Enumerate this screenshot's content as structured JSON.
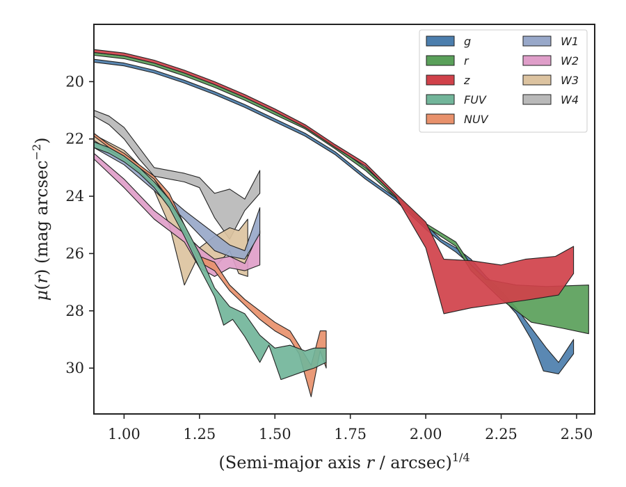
{
  "chart_data": {
    "type": "area",
    "xlabel": "(Semi-major axis r / arcsec)",
    "xlabel_parts": {
      "pre": "(Semi-major axis ",
      "var": "r",
      "post": " / arcsec)",
      "sup": "1/4"
    },
    "ylabel": "μ(r) (mag arcsec⁻²)",
    "ylabel_parts": {
      "mu": "μ",
      "var": "r",
      "rest": " (mag arcsec",
      "sup": "−2",
      "close": ")"
    },
    "xlim": [
      0.9,
      2.56
    ],
    "ylim": [
      31.6,
      18.0
    ],
    "y_inverted": true,
    "xticks": [
      1.0,
      1.25,
      1.5,
      1.75,
      2.0,
      2.25,
      2.5
    ],
    "xtick_labels": [
      "1.00",
      "1.25",
      "1.50",
      "1.75",
      "2.00",
      "2.25",
      "2.50"
    ],
    "yticks": [
      20,
      22,
      24,
      26,
      28,
      30
    ],
    "ytick_labels": [
      "20",
      "22",
      "24",
      "26",
      "28",
      "30"
    ],
    "grid": false,
    "legend_position": "top-right",
    "legend_columns": 2,
    "series": [
      {
        "name": "g",
        "color": "#4c7ead",
        "upper": [
          [
            0.9,
            19.22
          ],
          [
            1.0,
            19.35
          ],
          [
            1.1,
            19.6
          ],
          [
            1.2,
            19.95
          ],
          [
            1.3,
            20.35
          ],
          [
            1.4,
            20.8
          ],
          [
            1.5,
            21.3
          ],
          [
            1.6,
            21.8
          ],
          [
            1.7,
            22.45
          ],
          [
            1.8,
            23.3
          ],
          [
            1.9,
            24.05
          ],
          [
            2.0,
            25.0
          ],
          [
            2.05,
            25.5
          ],
          [
            2.1,
            25.8
          ],
          [
            2.15,
            26.2
          ],
          [
            2.2,
            26.8
          ],
          [
            2.25,
            27.3
          ],
          [
            2.3,
            27.9
          ],
          [
            2.35,
            28.6
          ],
          [
            2.4,
            29.3
          ],
          [
            2.44,
            29.8
          ],
          [
            2.49,
            29.0
          ]
        ],
        "lower": [
          [
            0.9,
            19.32
          ],
          [
            1.0,
            19.45
          ],
          [
            1.1,
            19.7
          ],
          [
            1.2,
            20.05
          ],
          [
            1.3,
            20.45
          ],
          [
            1.4,
            20.9
          ],
          [
            1.5,
            21.4
          ],
          [
            1.6,
            21.9
          ],
          [
            1.7,
            22.55
          ],
          [
            1.8,
            23.4
          ],
          [
            1.9,
            24.15
          ],
          [
            2.0,
            25.15
          ],
          [
            2.05,
            25.6
          ],
          [
            2.1,
            25.95
          ],
          [
            2.15,
            26.4
          ],
          [
            2.2,
            27.0
          ],
          [
            2.25,
            27.5
          ],
          [
            2.3,
            28.1
          ],
          [
            2.35,
            29.0
          ],
          [
            2.39,
            30.1
          ],
          [
            2.44,
            30.2
          ],
          [
            2.49,
            29.5
          ]
        ]
      },
      {
        "name": "r",
        "color": "#5aa05a",
        "upper": [
          [
            0.9,
            18.98
          ],
          [
            1.0,
            19.1
          ],
          [
            1.1,
            19.35
          ],
          [
            1.2,
            19.7
          ],
          [
            1.3,
            20.1
          ],
          [
            1.4,
            20.55
          ],
          [
            1.5,
            21.05
          ],
          [
            1.6,
            21.55
          ],
          [
            1.7,
            22.25
          ],
          [
            1.8,
            23.0
          ],
          [
            1.9,
            23.95
          ],
          [
            2.0,
            24.95
          ],
          [
            2.1,
            25.6
          ],
          [
            2.15,
            26.4
          ],
          [
            2.2,
            26.9
          ],
          [
            2.3,
            27.1
          ],
          [
            2.4,
            27.15
          ],
          [
            2.54,
            27.1
          ]
        ],
        "lower": [
          [
            0.9,
            19.08
          ],
          [
            1.0,
            19.2
          ],
          [
            1.1,
            19.45
          ],
          [
            1.2,
            19.8
          ],
          [
            1.3,
            20.2
          ],
          [
            1.4,
            20.65
          ],
          [
            1.5,
            21.15
          ],
          [
            1.6,
            21.65
          ],
          [
            1.7,
            22.35
          ],
          [
            1.8,
            23.1
          ],
          [
            1.9,
            24.05
          ],
          [
            2.0,
            25.05
          ],
          [
            2.1,
            25.75
          ],
          [
            2.15,
            26.6
          ],
          [
            2.2,
            27.1
          ],
          [
            2.25,
            27.6
          ],
          [
            2.3,
            28.0
          ],
          [
            2.35,
            28.4
          ],
          [
            2.45,
            28.6
          ],
          [
            2.54,
            28.8
          ]
        ]
      },
      {
        "name": "z",
        "color": "#d0414a",
        "upper": [
          [
            0.9,
            18.88
          ],
          [
            1.0,
            19.0
          ],
          [
            1.1,
            19.25
          ],
          [
            1.2,
            19.6
          ],
          [
            1.3,
            20.0
          ],
          [
            1.4,
            20.45
          ],
          [
            1.5,
            20.95
          ],
          [
            1.6,
            21.5
          ],
          [
            1.7,
            22.2
          ],
          [
            1.8,
            22.85
          ],
          [
            1.9,
            23.9
          ],
          [
            2.0,
            24.9
          ],
          [
            2.06,
            26.2
          ],
          [
            2.15,
            26.25
          ],
          [
            2.25,
            26.4
          ],
          [
            2.33,
            26.2
          ],
          [
            2.43,
            26.1
          ],
          [
            2.49,
            25.75
          ]
        ],
        "lower": [
          [
            0.9,
            18.98
          ],
          [
            1.0,
            19.1
          ],
          [
            1.1,
            19.35
          ],
          [
            1.2,
            19.7
          ],
          [
            1.3,
            20.1
          ],
          [
            1.4,
            20.55
          ],
          [
            1.5,
            21.05
          ],
          [
            1.6,
            21.6
          ],
          [
            1.7,
            22.3
          ],
          [
            1.8,
            22.95
          ],
          [
            1.9,
            24.0
          ],
          [
            2.0,
            25.8
          ],
          [
            2.06,
            28.1
          ],
          [
            2.15,
            27.9
          ],
          [
            2.25,
            27.75
          ],
          [
            2.35,
            27.6
          ],
          [
            2.44,
            27.45
          ],
          [
            2.49,
            26.7
          ]
        ]
      },
      {
        "name": "FUV",
        "color": "#72b59a",
        "upper": [
          [
            0.9,
            22.1
          ],
          [
            0.95,
            22.3
          ],
          [
            1.0,
            22.6
          ],
          [
            1.05,
            23.0
          ],
          [
            1.1,
            23.5
          ],
          [
            1.15,
            24.1
          ],
          [
            1.2,
            25.0
          ],
          [
            1.25,
            26.0
          ],
          [
            1.3,
            27.2
          ],
          [
            1.35,
            27.85
          ],
          [
            1.4,
            28.1
          ],
          [
            1.45,
            28.85
          ],
          [
            1.5,
            29.3
          ],
          [
            1.55,
            29.2
          ],
          [
            1.6,
            29.4
          ],
          [
            1.63,
            29.3
          ],
          [
            1.67,
            29.3
          ]
        ],
        "lower": [
          [
            0.9,
            22.3
          ],
          [
            0.95,
            22.5
          ],
          [
            1.0,
            22.8
          ],
          [
            1.05,
            23.2
          ],
          [
            1.1,
            23.7
          ],
          [
            1.15,
            24.4
          ],
          [
            1.2,
            25.4
          ],
          [
            1.25,
            26.5
          ],
          [
            1.3,
            27.5
          ],
          [
            1.33,
            28.5
          ],
          [
            1.36,
            28.3
          ],
          [
            1.4,
            28.9
          ],
          [
            1.45,
            29.8
          ],
          [
            1.48,
            29.2
          ],
          [
            1.52,
            30.4
          ],
          [
            1.6,
            30.1
          ],
          [
            1.63,
            30.0
          ],
          [
            1.67,
            29.8
          ]
        ]
      },
      {
        "name": "NUV",
        "color": "#e8916c",
        "upper": [
          [
            0.9,
            21.8
          ],
          [
            0.95,
            22.2
          ],
          [
            1.0,
            22.5
          ],
          [
            1.05,
            22.9
          ],
          [
            1.1,
            23.3
          ],
          [
            1.15,
            23.9
          ],
          [
            1.2,
            25.0
          ],
          [
            1.25,
            26.1
          ],
          [
            1.3,
            26.3
          ],
          [
            1.35,
            27.1
          ],
          [
            1.4,
            27.6
          ],
          [
            1.45,
            28.0
          ],
          [
            1.5,
            28.4
          ],
          [
            1.55,
            28.7
          ],
          [
            1.58,
            29.2
          ],
          [
            1.62,
            29.9
          ],
          [
            1.65,
            28.7
          ],
          [
            1.67,
            28.7
          ]
        ],
        "lower": [
          [
            0.9,
            21.9
          ],
          [
            0.95,
            22.3
          ],
          [
            1.0,
            22.6
          ],
          [
            1.05,
            23.0
          ],
          [
            1.1,
            23.4
          ],
          [
            1.15,
            24.1
          ],
          [
            1.2,
            25.2
          ],
          [
            1.25,
            26.3
          ],
          [
            1.3,
            26.6
          ],
          [
            1.35,
            27.3
          ],
          [
            1.4,
            27.8
          ],
          [
            1.45,
            28.3
          ],
          [
            1.5,
            28.7
          ],
          [
            1.55,
            29.0
          ],
          [
            1.58,
            29.5
          ],
          [
            1.62,
            31.0
          ],
          [
            1.65,
            29.4
          ],
          [
            1.67,
            30.0
          ]
        ]
      },
      {
        "name": "W1",
        "color": "#98a8c9",
        "upper": [
          [
            0.9,
            22.1
          ],
          [
            1.0,
            22.7
          ],
          [
            1.1,
            23.6
          ],
          [
            1.2,
            24.5
          ],
          [
            1.3,
            25.3
          ],
          [
            1.35,
            25.7
          ],
          [
            1.4,
            25.9
          ],
          [
            1.45,
            24.4
          ]
        ],
        "lower": [
          [
            0.9,
            22.3
          ],
          [
            1.0,
            22.9
          ],
          [
            1.1,
            23.8
          ],
          [
            1.2,
            24.8
          ],
          [
            1.3,
            25.9
          ],
          [
            1.35,
            26.1
          ],
          [
            1.4,
            26.2
          ],
          [
            1.45,
            25.3
          ]
        ]
      },
      {
        "name": "W2",
        "color": "#df9ec9",
        "upper": [
          [
            0.9,
            22.5
          ],
          [
            1.0,
            23.4
          ],
          [
            1.1,
            24.5
          ],
          [
            1.2,
            25.3
          ],
          [
            1.25,
            25.8
          ],
          [
            1.3,
            26.2
          ],
          [
            1.35,
            26.1
          ],
          [
            1.4,
            26.35
          ],
          [
            1.45,
            25.2
          ]
        ],
        "lower": [
          [
            0.9,
            22.7
          ],
          [
            1.0,
            23.7
          ],
          [
            1.1,
            24.8
          ],
          [
            1.2,
            25.6
          ],
          [
            1.25,
            26.5
          ],
          [
            1.3,
            26.8
          ],
          [
            1.35,
            26.5
          ],
          [
            1.4,
            26.6
          ],
          [
            1.45,
            26.4
          ]
        ]
      },
      {
        "name": "W3",
        "color": "#dcc3a0",
        "upper": [
          [
            0.9,
            21.85
          ],
          [
            1.0,
            22.4
          ],
          [
            1.05,
            22.9
          ],
          [
            1.1,
            23.4
          ],
          [
            1.15,
            24.2
          ],
          [
            1.2,
            25.3
          ],
          [
            1.25,
            25.8
          ],
          [
            1.3,
            25.4
          ],
          [
            1.35,
            25.1
          ],
          [
            1.38,
            25.2
          ],
          [
            1.41,
            24.8
          ]
        ],
        "lower": [
          [
            0.9,
            22.05
          ],
          [
            1.0,
            22.7
          ],
          [
            1.05,
            23.1
          ],
          [
            1.1,
            23.8
          ],
          [
            1.15,
            25.0
          ],
          [
            1.2,
            27.1
          ],
          [
            1.25,
            26.0
          ],
          [
            1.3,
            26.5
          ],
          [
            1.35,
            25.9
          ],
          [
            1.38,
            26.7
          ],
          [
            1.41,
            26.8
          ]
        ]
      },
      {
        "name": "W4",
        "color": "#b9b9b9",
        "upper": [
          [
            0.9,
            21.0
          ],
          [
            0.95,
            21.2
          ],
          [
            1.0,
            21.6
          ],
          [
            1.05,
            22.3
          ],
          [
            1.1,
            23.0
          ],
          [
            1.2,
            23.2
          ],
          [
            1.25,
            23.35
          ],
          [
            1.3,
            23.9
          ],
          [
            1.35,
            23.75
          ],
          [
            1.4,
            24.1
          ],
          [
            1.45,
            23.1
          ]
        ],
        "lower": [
          [
            0.9,
            21.2
          ],
          [
            0.95,
            21.5
          ],
          [
            1.0,
            22.0
          ],
          [
            1.05,
            22.7
          ],
          [
            1.1,
            23.3
          ],
          [
            1.2,
            23.5
          ],
          [
            1.25,
            23.7
          ],
          [
            1.3,
            24.75
          ],
          [
            1.35,
            25.5
          ],
          [
            1.4,
            24.5
          ],
          [
            1.45,
            23.9
          ]
        ]
      }
    ]
  }
}
